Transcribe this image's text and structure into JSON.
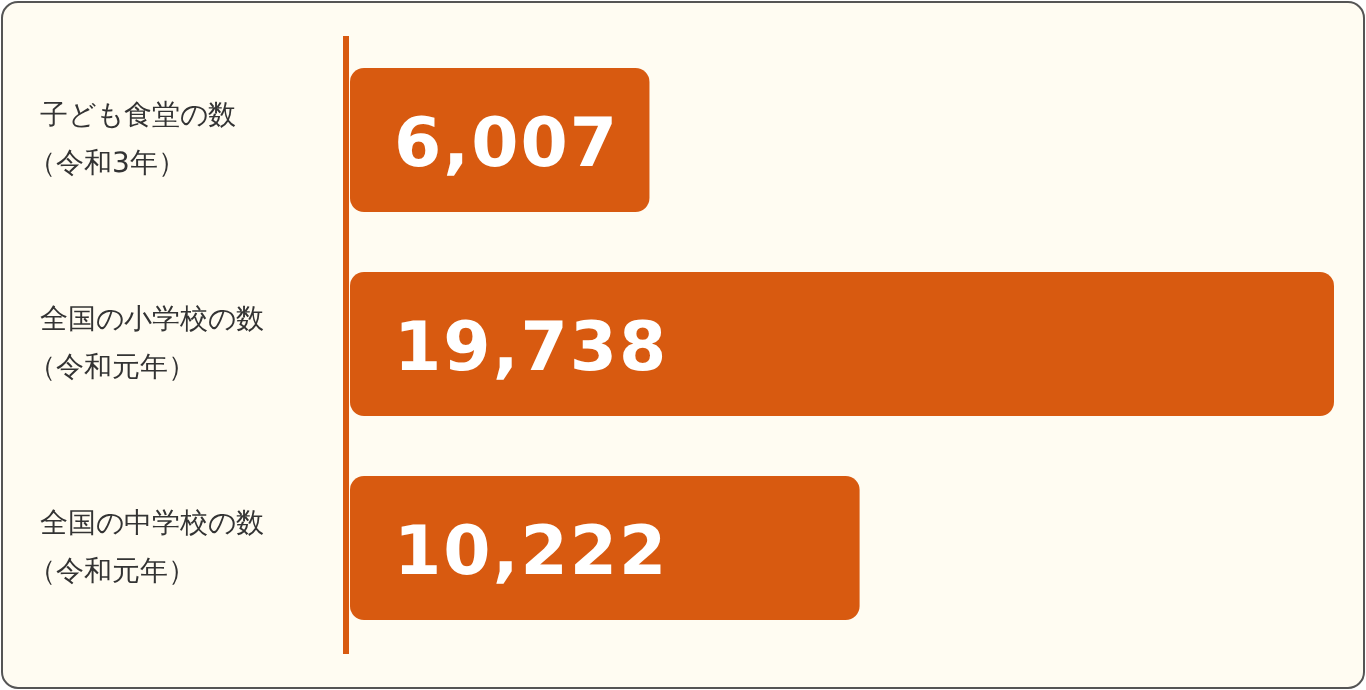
{
  "chart_data": {
    "type": "bar",
    "orientation": "horizontal",
    "color": "#d85a10",
    "categories": [
      "子ども食堂の数（令和3年）",
      "全国の小学校の数（令和元年）",
      "全国の中学校の数（令和元年）"
    ],
    "values": [
      6007,
      19738,
      10222
    ],
    "value_labels": [
      "6,007",
      "19,738",
      "10,222"
    ]
  }
}
